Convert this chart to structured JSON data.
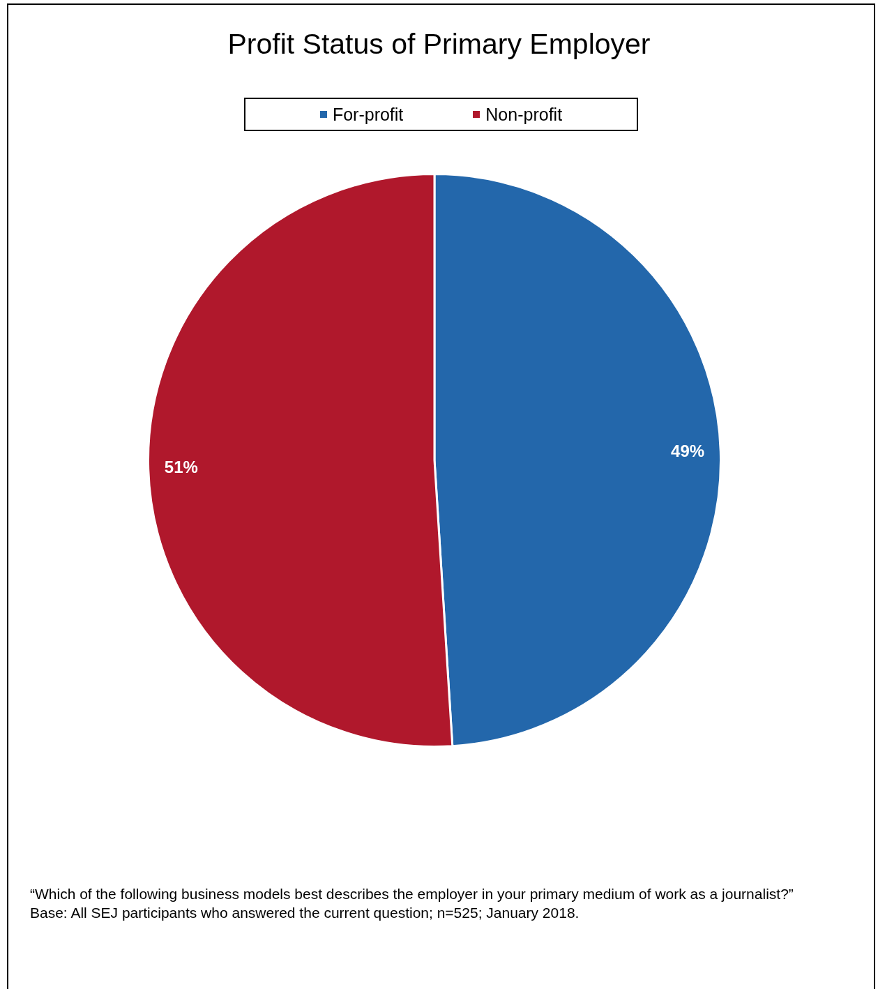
{
  "chart_data": {
    "type": "pie",
    "title": "Profit Status of Primary Employer",
    "categories": [
      "For-profit",
      "Non-profit"
    ],
    "values": [
      49,
      51
    ],
    "colors": [
      "#2367ab",
      "#b0182c"
    ],
    "value_labels": [
      "49%",
      "51%"
    ],
    "legend": "top",
    "annotations": [
      "“Which of the following business models best describes the employer in your primary medium of work as a journalist?”",
      "Base: All SEJ participants who answered the current question; n=525; January 2018."
    ]
  }
}
